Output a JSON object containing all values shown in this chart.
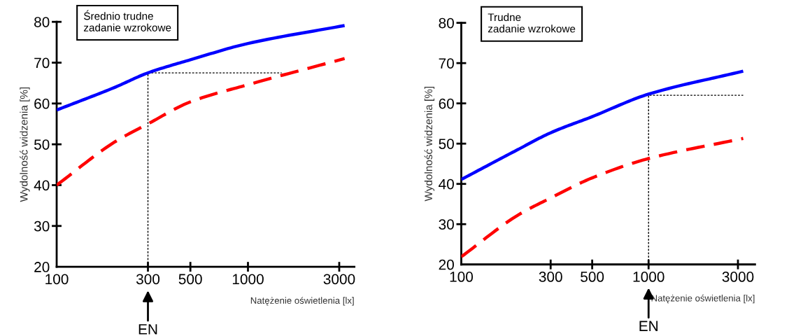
{
  "chart_data": [
    {
      "type": "line",
      "title": "Średnio trudne\nzadanie wzrokowe",
      "xlabel": "Natężenie oświetlenia [lx]",
      "ylabel": "Wydolność widzenia [%]",
      "log": "x",
      "xlim": [
        100,
        3600
      ],
      "xticks": [
        100,
        300,
        500,
        1000,
        3000
      ],
      "ylim": [
        20,
        80
      ],
      "yticks": [
        20,
        30,
        40,
        50,
        60,
        70,
        80
      ],
      "grid": false,
      "legend": false,
      "series": [
        {
          "color": "#0000ff",
          "line_style": "solid",
          "x": [
            100,
            200,
            300,
            500,
            1000,
            3200
          ],
          "values": [
            58.4,
            63.9,
            67.5,
            70.7,
            74.7,
            79.1
          ]
        },
        {
          "color": "#ff0000",
          "line_style": "dashed",
          "x": [
            100,
            200,
            300,
            500,
            1000,
            3200
          ],
          "values": [
            40,
            50.5,
            55,
            60.4,
            64.6,
            71
          ]
        },
        {
          "color": "#000000",
          "line_style": "dotted",
          "x": [
            300,
            300,
            1500
          ],
          "values": [
            20,
            67.5,
            67.5
          ]
        }
      ],
      "annotations": [
        "EN"
      ]
    },
    {
      "type": "line",
      "title": "Trudne\nzadanie wzrokowe",
      "xlabel": "Natężenie oświetlenia [lx]",
      "ylabel": "Wydolność widzenia [%]",
      "log": "x",
      "xlim": [
        100,
        3700
      ],
      "xticks": [
        100,
        300,
        500,
        1000,
        3000
      ],
      "ylim": [
        20,
        80
      ],
      "yticks": [
        20,
        30,
        40,
        50,
        60,
        70,
        80
      ],
      "grid": false,
      "legend": false,
      "series": [
        {
          "color": "#0000ff",
          "line_style": "solid",
          "x": [
            100,
            200,
            300,
            500,
            1000,
            3200
          ],
          "values": [
            41.1,
            48.5,
            52.7,
            56.7,
            62.3,
            68
          ]
        },
        {
          "color": "#ff0000",
          "line_style": "dashed",
          "x": [
            100,
            200,
            300,
            500,
            1000,
            3200
          ],
          "values": [
            21.9,
            32.2,
            36.5,
            41.5,
            46.3,
            51.3
          ]
        },
        {
          "color": "#000000",
          "line_style": "dotted",
          "x": [
            1000,
            1000,
            3200
          ],
          "values": [
            20,
            62,
            62
          ]
        }
      ],
      "annotations": [
        "EN"
      ]
    }
  ]
}
